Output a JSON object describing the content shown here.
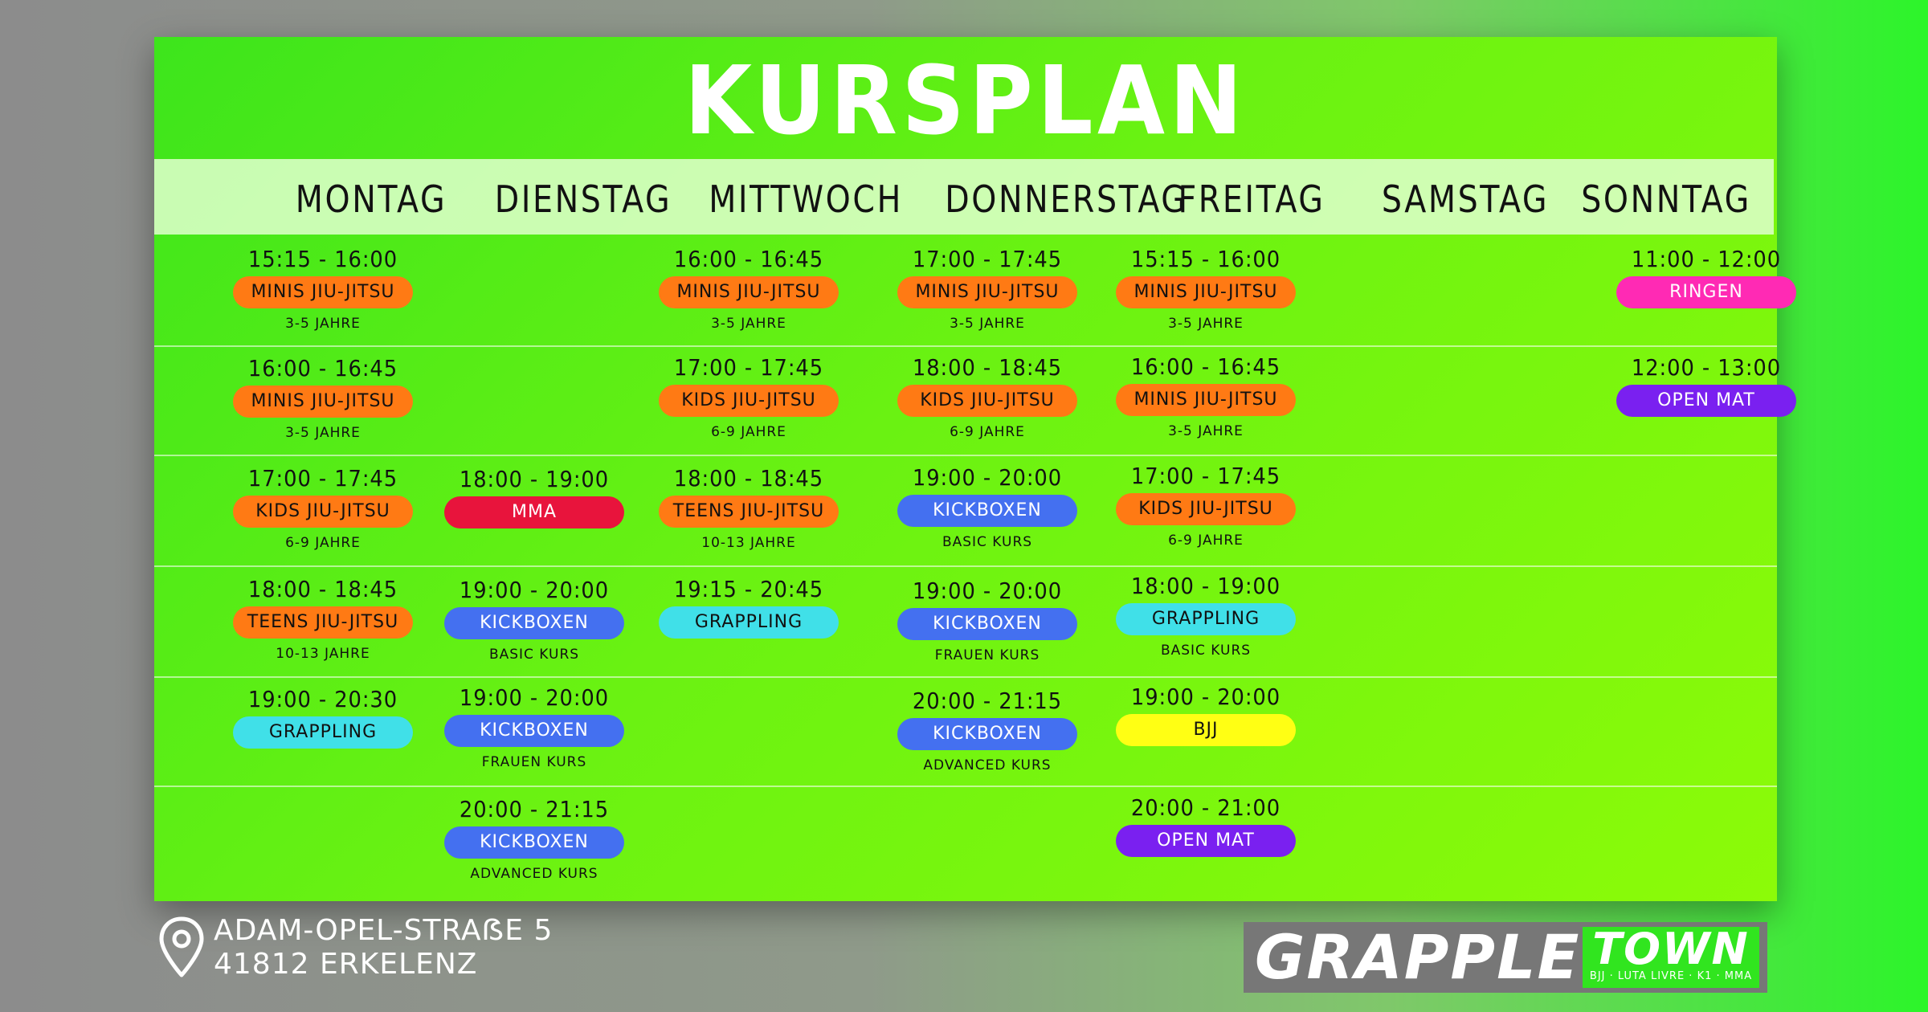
{
  "title": "KURSPLAN",
  "days": [
    "MONTAG",
    "DIENSTAG",
    "MITTWOCH",
    "DONNERSTAG",
    "FREITAG",
    "SAMSTAG",
    "SONNTAG"
  ],
  "colors": {
    "orange": "#ff7a14",
    "red": "#e8143c",
    "blue": "#4470f0",
    "cyan": "#40e0e8",
    "yellow": "#ffff14",
    "purple": "#7a20f0",
    "pink": "#ff2ab4"
  },
  "schedule": {
    "montag": [
      {
        "time": "15:15 - 16:00",
        "course": "MINIS JIU-JITSU",
        "color": "orange",
        "sub": "3-5 JAHRE"
      },
      {
        "time": "16:00 - 16:45",
        "course": "MINIS JIU-JITSU",
        "color": "orange",
        "sub": "3-5 JAHRE"
      },
      {
        "time": "17:00 - 17:45",
        "course": "KIDS JIU-JITSU",
        "color": "orange",
        "sub": "6-9 JAHRE"
      },
      {
        "time": "18:00 - 18:45",
        "course": "TEENS JIU-JITSU",
        "color": "orange",
        "sub": "10-13 JAHRE"
      },
      {
        "time": "19:00 - 20:30",
        "course": "GRAPPLING",
        "color": "cyan",
        "sub": ""
      }
    ],
    "dienstag": [
      {
        "time": "18:00 - 19:00",
        "course": "MMA",
        "color": "red",
        "sub": ""
      },
      {
        "time": "19:00 - 20:00",
        "course": "KICKBOXEN",
        "color": "blue",
        "sub": "BASIC KURS"
      },
      {
        "time": "19:00 - 20:00",
        "course": "KICKBOXEN",
        "color": "blue",
        "sub": "FRAUEN KURS"
      },
      {
        "time": "20:00 - 21:15",
        "course": "KICKBOXEN",
        "color": "blue",
        "sub": "ADVANCED KURS"
      }
    ],
    "mittwoch": [
      {
        "time": "16:00 - 16:45",
        "course": "MINIS JIU-JITSU",
        "color": "orange",
        "sub": "3-5 JAHRE"
      },
      {
        "time": "17:00 - 17:45",
        "course": "KIDS JIU-JITSU",
        "color": "orange",
        "sub": "6-9 JAHRE"
      },
      {
        "time": "18:00 - 18:45",
        "course": "TEENS JIU-JITSU",
        "color": "orange",
        "sub": "10-13 JAHRE"
      },
      {
        "time": "19:15 - 20:45",
        "course": "GRAPPLING",
        "color": "cyan",
        "sub": ""
      }
    ],
    "donnerstag": [
      {
        "time": "17:00 - 17:45",
        "course": "MINIS JIU-JITSU",
        "color": "orange",
        "sub": "3-5 JAHRE"
      },
      {
        "time": "18:00 - 18:45",
        "course": "KIDS JIU-JITSU",
        "color": "orange",
        "sub": "6-9 JAHRE"
      },
      {
        "time": "19:00 - 20:00",
        "course": "KICKBOXEN",
        "color": "blue",
        "sub": "BASIC KURS"
      },
      {
        "time": "19:00 - 20:00",
        "course": "KICKBOXEN",
        "color": "blue",
        "sub": "FRAUEN KURS"
      },
      {
        "time": "20:00 - 21:15",
        "course": "KICKBOXEN",
        "color": "blue",
        "sub": "ADVANCED KURS"
      }
    ],
    "freitag": [
      {
        "time": "15:15 - 16:00",
        "course": "MINIS JIU-JITSU",
        "color": "orange",
        "sub": "3-5 JAHRE"
      },
      {
        "time": "16:00 - 16:45",
        "course": "MINIS JIU-JITSU",
        "color": "orange",
        "sub": "3-5 JAHRE"
      },
      {
        "time": "17:00 - 17:45",
        "course": "KIDS JIU-JITSU",
        "color": "orange",
        "sub": "6-9 JAHRE"
      },
      {
        "time": "18:00 - 19:00",
        "course": "GRAPPLING",
        "color": "cyan",
        "sub": "BASIC KURS"
      },
      {
        "time": "19:00 - 20:00",
        "course": "BJJ",
        "color": "yellow",
        "sub": ""
      },
      {
        "time": "20:00 - 21:00",
        "course": "OPEN MAT",
        "color": "purple",
        "sub": ""
      }
    ],
    "sonntag": [
      {
        "time": "11:00 - 12:00",
        "course": "RINGEN",
        "color": "pink",
        "sub": ""
      },
      {
        "time": "12:00 - 13:00",
        "course": "OPEN MAT",
        "color": "purple",
        "sub": ""
      }
    ]
  },
  "address": {
    "line1": "ADAM-OPEL-STRAẞE 5",
    "line2": "41812 ERKELENZ"
  },
  "logo": {
    "left": "GRAPPLE",
    "right": "TOWN",
    "tagline": "BJJ · LUTA LIVRE · K1 · MMA"
  }
}
